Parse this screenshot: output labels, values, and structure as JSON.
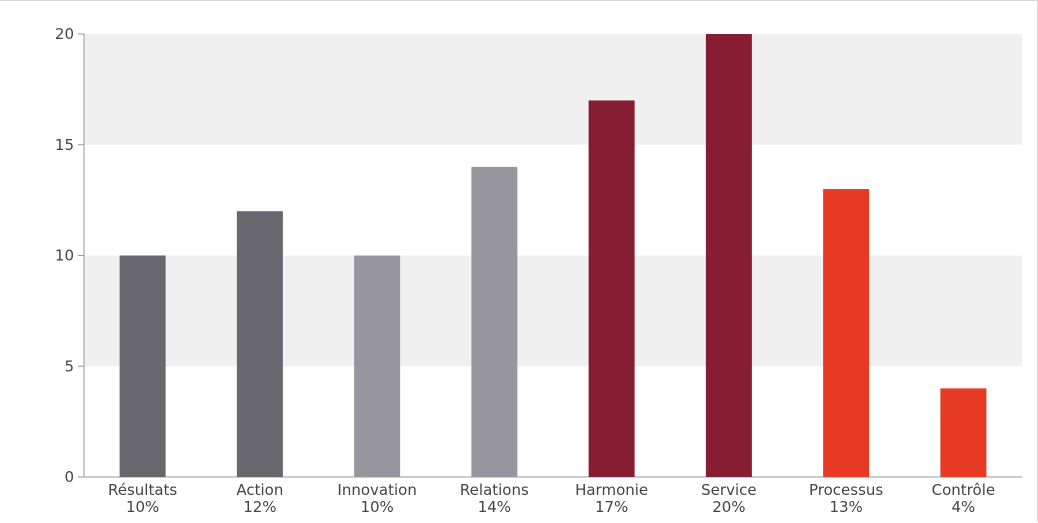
{
  "chart_data": {
    "type": "bar",
    "categories": [
      "Résultats",
      "Action",
      "Innovation",
      "Relations",
      "Harmonie",
      "Service",
      "Processus",
      "Contrôle"
    ],
    "percent_labels": [
      "10%",
      "12%",
      "10%",
      "14%",
      "17%",
      "20%",
      "13%",
      "4%"
    ],
    "values": [
      10,
      12,
      10,
      14,
      17,
      20,
      13,
      4
    ],
    "colors": [
      "#68676d",
      "#68676d",
      "#97969e",
      "#97969e",
      "#871d33",
      "#871d33",
      "#e63a25",
      "#e63a25"
    ],
    "title": "",
    "xlabel": "",
    "ylabel": "",
    "ylim": [
      0,
      20
    ],
    "yticks": [
      0,
      5,
      10,
      15,
      20
    ],
    "grid": "alternating horizontal bands",
    "legend": "none"
  }
}
